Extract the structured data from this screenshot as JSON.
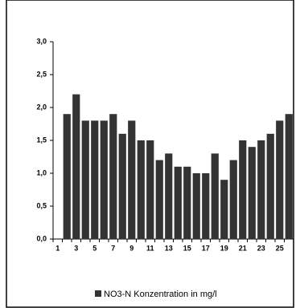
{
  "chart_data": {
    "type": "bar",
    "legend": "NO3-N Konzentration in mg/l",
    "color": "#333333",
    "categories": [
      "1",
      null,
      "3",
      null,
      "5",
      null,
      "7",
      null,
      "9",
      null,
      "11",
      null,
      "13",
      null,
      "15",
      null,
      "17",
      null,
      "19",
      null,
      "21",
      null,
      "23",
      null,
      "25",
      null
    ],
    "values": [
      null,
      1.9,
      2.2,
      1.8,
      1.8,
      1.8,
      1.9,
      1.6,
      1.8,
      1.5,
      1.5,
      1.2,
      1.3,
      1.1,
      1.1,
      1.0,
      1.0,
      1.3,
      0.9,
      1.2,
      1.5,
      1.4,
      1.5,
      1.6,
      1.8,
      1.9
    ],
    "ylim": [
      0,
      3
    ],
    "yticks": [
      {
        "value": 0,
        "label": "0,0"
      },
      {
        "value": 0.5,
        "label": "0,5"
      },
      {
        "value": 1,
        "label": "1,0"
      },
      {
        "value": 1.5,
        "label": "1,5"
      },
      {
        "value": 2,
        "label": "2,0"
      },
      {
        "value": 2.5,
        "label": "2,5"
      },
      {
        "value": 3,
        "label": "3,0"
      }
    ]
  }
}
